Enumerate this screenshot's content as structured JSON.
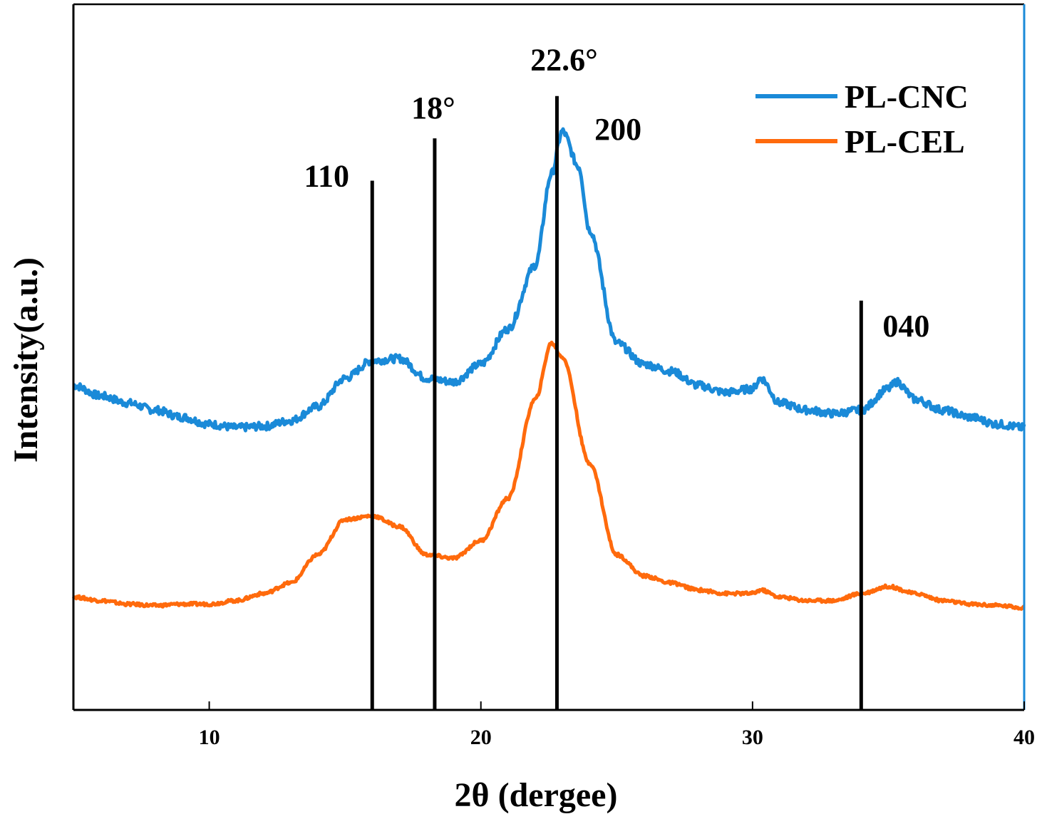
{
  "chart_data": {
    "type": "line",
    "title": "",
    "xlabel": "2θ (dergee)",
    "ylabel": "Intensity(a.u.)",
    "xlim": [
      5,
      40
    ],
    "ylim": [
      0,
      100
    ],
    "x_ticks": [
      10,
      20,
      30,
      40
    ],
    "y_ticks": [],
    "legend_position": "top-right",
    "series": [
      {
        "name": "PL-CNC",
        "color": "#1a8ad8",
        "points": [
          [
            5,
            46
          ],
          [
            6,
            44.5
          ],
          [
            7,
            43.5
          ],
          [
            8,
            42.5
          ],
          [
            9,
            41.5
          ],
          [
            10,
            40.5
          ],
          [
            11,
            40
          ],
          [
            12,
            40.2
          ],
          [
            13,
            41
          ],
          [
            14,
            43
          ],
          [
            15,
            47
          ],
          [
            16,
            49.5
          ],
          [
            17,
            49.8
          ],
          [
            18,
            47
          ],
          [
            19,
            46.5
          ],
          [
            20,
            49
          ],
          [
            21,
            54
          ],
          [
            22,
            63
          ],
          [
            22.6,
            76
          ],
          [
            23,
            82
          ],
          [
            23.6,
            77
          ],
          [
            24,
            68
          ],
          [
            25,
            52
          ],
          [
            26,
            49
          ],
          [
            27,
            48
          ],
          [
            28,
            46
          ],
          [
            29,
            45
          ],
          [
            30,
            45.5
          ],
          [
            30.3,
            47
          ],
          [
            31,
            43.5
          ],
          [
            32,
            42.5
          ],
          [
            33,
            42
          ],
          [
            34,
            42.5
          ],
          [
            35,
            45.5
          ],
          [
            35.3,
            46.5
          ],
          [
            36,
            44
          ],
          [
            37,
            42.5
          ],
          [
            38,
            41.5
          ],
          [
            39,
            40.5
          ],
          [
            40,
            40
          ]
        ]
      },
      {
        "name": "PL-CEL",
        "color": "#ff6a0c",
        "points": [
          [
            5,
            16
          ],
          [
            6,
            15.5
          ],
          [
            7,
            15
          ],
          [
            8,
            14.8
          ],
          [
            9,
            15
          ],
          [
            10,
            15
          ],
          [
            11,
            15.5
          ],
          [
            12,
            16.5
          ],
          [
            13,
            18
          ],
          [
            14,
            22
          ],
          [
            15,
            27
          ],
          [
            16,
            27.5
          ],
          [
            17,
            26
          ],
          [
            18,
            22
          ],
          [
            19,
            21.5
          ],
          [
            20,
            24
          ],
          [
            21,
            30
          ],
          [
            22,
            44
          ],
          [
            22.6,
            52
          ],
          [
            23,
            50
          ],
          [
            24,
            35
          ],
          [
            25,
            22
          ],
          [
            26,
            19
          ],
          [
            27,
            18
          ],
          [
            28,
            17
          ],
          [
            29,
            16.5
          ],
          [
            30,
            16.5
          ],
          [
            30.3,
            17
          ],
          [
            31,
            16
          ],
          [
            32,
            15.5
          ],
          [
            33,
            15.5
          ],
          [
            34,
            16.5
          ],
          [
            35,
            17.5
          ],
          [
            36,
            16.5
          ],
          [
            37,
            15.5
          ],
          [
            38,
            15
          ],
          [
            39,
            14.8
          ],
          [
            40,
            14.5
          ]
        ]
      }
    ],
    "reference_lines": [
      {
        "x": 16,
        "top": 75,
        "label": "110"
      },
      {
        "x": 18.3,
        "top": 81,
        "label": "18°"
      },
      {
        "x": 22.8,
        "top": 87,
        "label": "22.6°"
      },
      {
        "x": 34,
        "top": 58,
        "label": "040"
      }
    ],
    "annotations": [
      {
        "x": 24,
        "y": 82,
        "text": "200"
      }
    ]
  }
}
